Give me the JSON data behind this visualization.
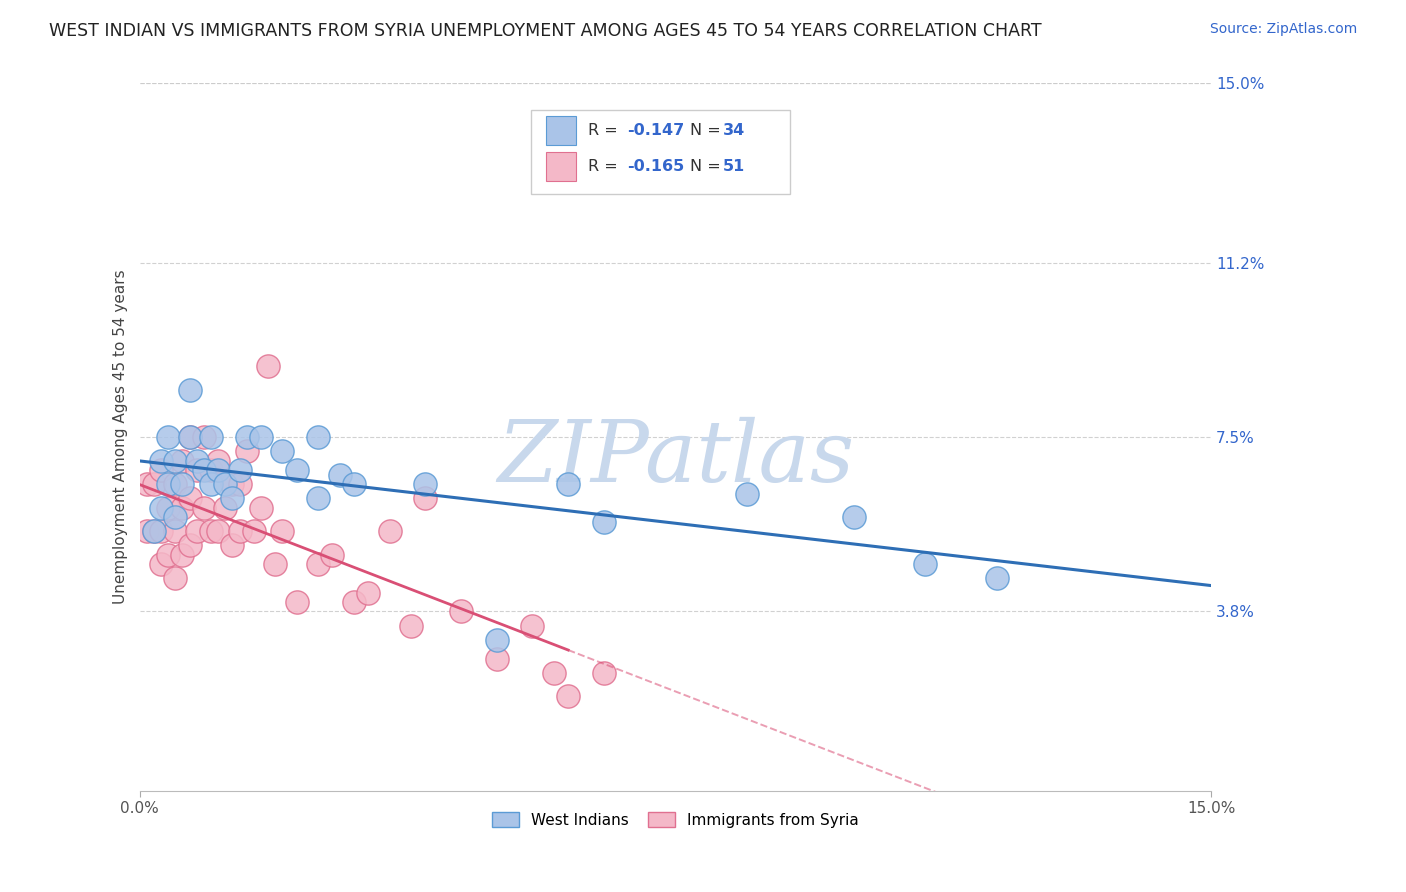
{
  "title": "WEST INDIAN VS IMMIGRANTS FROM SYRIA UNEMPLOYMENT AMONG AGES 45 TO 54 YEARS CORRELATION CHART",
  "source": "Source: ZipAtlas.com",
  "ylabel": "Unemployment Among Ages 45 to 54 years",
  "xlim": [
    0.0,
    0.15
  ],
  "ylim": [
    0.0,
    0.15
  ],
  "yticks": [
    0.0,
    0.038,
    0.075,
    0.112,
    0.15
  ],
  "ytick_labels": [
    "",
    "3.8%",
    "7.5%",
    "11.2%",
    "15.0%"
  ],
  "xtick_labels": [
    "0.0%",
    "15.0%"
  ],
  "grid_color": "#cccccc",
  "background_color": "#ffffff",
  "west_indians": {
    "label": "West Indians",
    "R": -0.147,
    "N": 34,
    "color": "#aac4e8",
    "edge_color": "#5b9bd5",
    "line_color": "#2e6eb5",
    "x": [
      0.002,
      0.003,
      0.003,
      0.004,
      0.004,
      0.005,
      0.005,
      0.006,
      0.007,
      0.007,
      0.008,
      0.009,
      0.01,
      0.01,
      0.011,
      0.012,
      0.013,
      0.014,
      0.015,
      0.017,
      0.02,
      0.022,
      0.025,
      0.025,
      0.028,
      0.03,
      0.04,
      0.05,
      0.06,
      0.065,
      0.085,
      0.1,
      0.11,
      0.12
    ],
    "y": [
      0.055,
      0.06,
      0.07,
      0.065,
      0.075,
      0.07,
      0.058,
      0.065,
      0.075,
      0.085,
      0.07,
      0.068,
      0.065,
      0.075,
      0.068,
      0.065,
      0.062,
      0.068,
      0.075,
      0.075,
      0.072,
      0.068,
      0.062,
      0.075,
      0.067,
      0.065,
      0.065,
      0.032,
      0.065,
      0.057,
      0.063,
      0.058,
      0.048,
      0.045
    ]
  },
  "syria": {
    "label": "Immigrants from Syria",
    "R": -0.165,
    "N": 51,
    "color": "#f4b8c8",
    "edge_color": "#e07090",
    "line_color": "#d94f75",
    "x": [
      0.001,
      0.001,
      0.002,
      0.002,
      0.003,
      0.003,
      0.003,
      0.004,
      0.004,
      0.005,
      0.005,
      0.005,
      0.006,
      0.006,
      0.006,
      0.007,
      0.007,
      0.007,
      0.008,
      0.008,
      0.009,
      0.009,
      0.01,
      0.01,
      0.011,
      0.011,
      0.012,
      0.013,
      0.013,
      0.014,
      0.014,
      0.015,
      0.016,
      0.017,
      0.018,
      0.019,
      0.02,
      0.022,
      0.025,
      0.027,
      0.03,
      0.032,
      0.035,
      0.038,
      0.04,
      0.045,
      0.05,
      0.055,
      0.058,
      0.06,
      0.065
    ],
    "y": [
      0.065,
      0.055,
      0.065,
      0.055,
      0.068,
      0.055,
      0.048,
      0.06,
      0.05,
      0.065,
      0.055,
      0.045,
      0.07,
      0.06,
      0.05,
      0.075,
      0.062,
      0.052,
      0.068,
      0.055,
      0.075,
      0.06,
      0.068,
      0.055,
      0.07,
      0.055,
      0.06,
      0.065,
      0.052,
      0.065,
      0.055,
      0.072,
      0.055,
      0.06,
      0.09,
      0.048,
      0.055,
      0.04,
      0.048,
      0.05,
      0.04,
      0.042,
      0.055,
      0.035,
      0.062,
      0.038,
      0.028,
      0.035,
      0.025,
      0.02,
      0.025
    ]
  },
  "syria_line_end_x": 0.06,
  "watermark_text": "ZIPatlas",
  "watermark_color": "#c8d8ec",
  "legend_text_color": "#333333",
  "legend_value_color": "#3366cc",
  "title_fontsize": 12.5,
  "source_fontsize": 10,
  "axis_label_fontsize": 11,
  "tick_fontsize": 11
}
